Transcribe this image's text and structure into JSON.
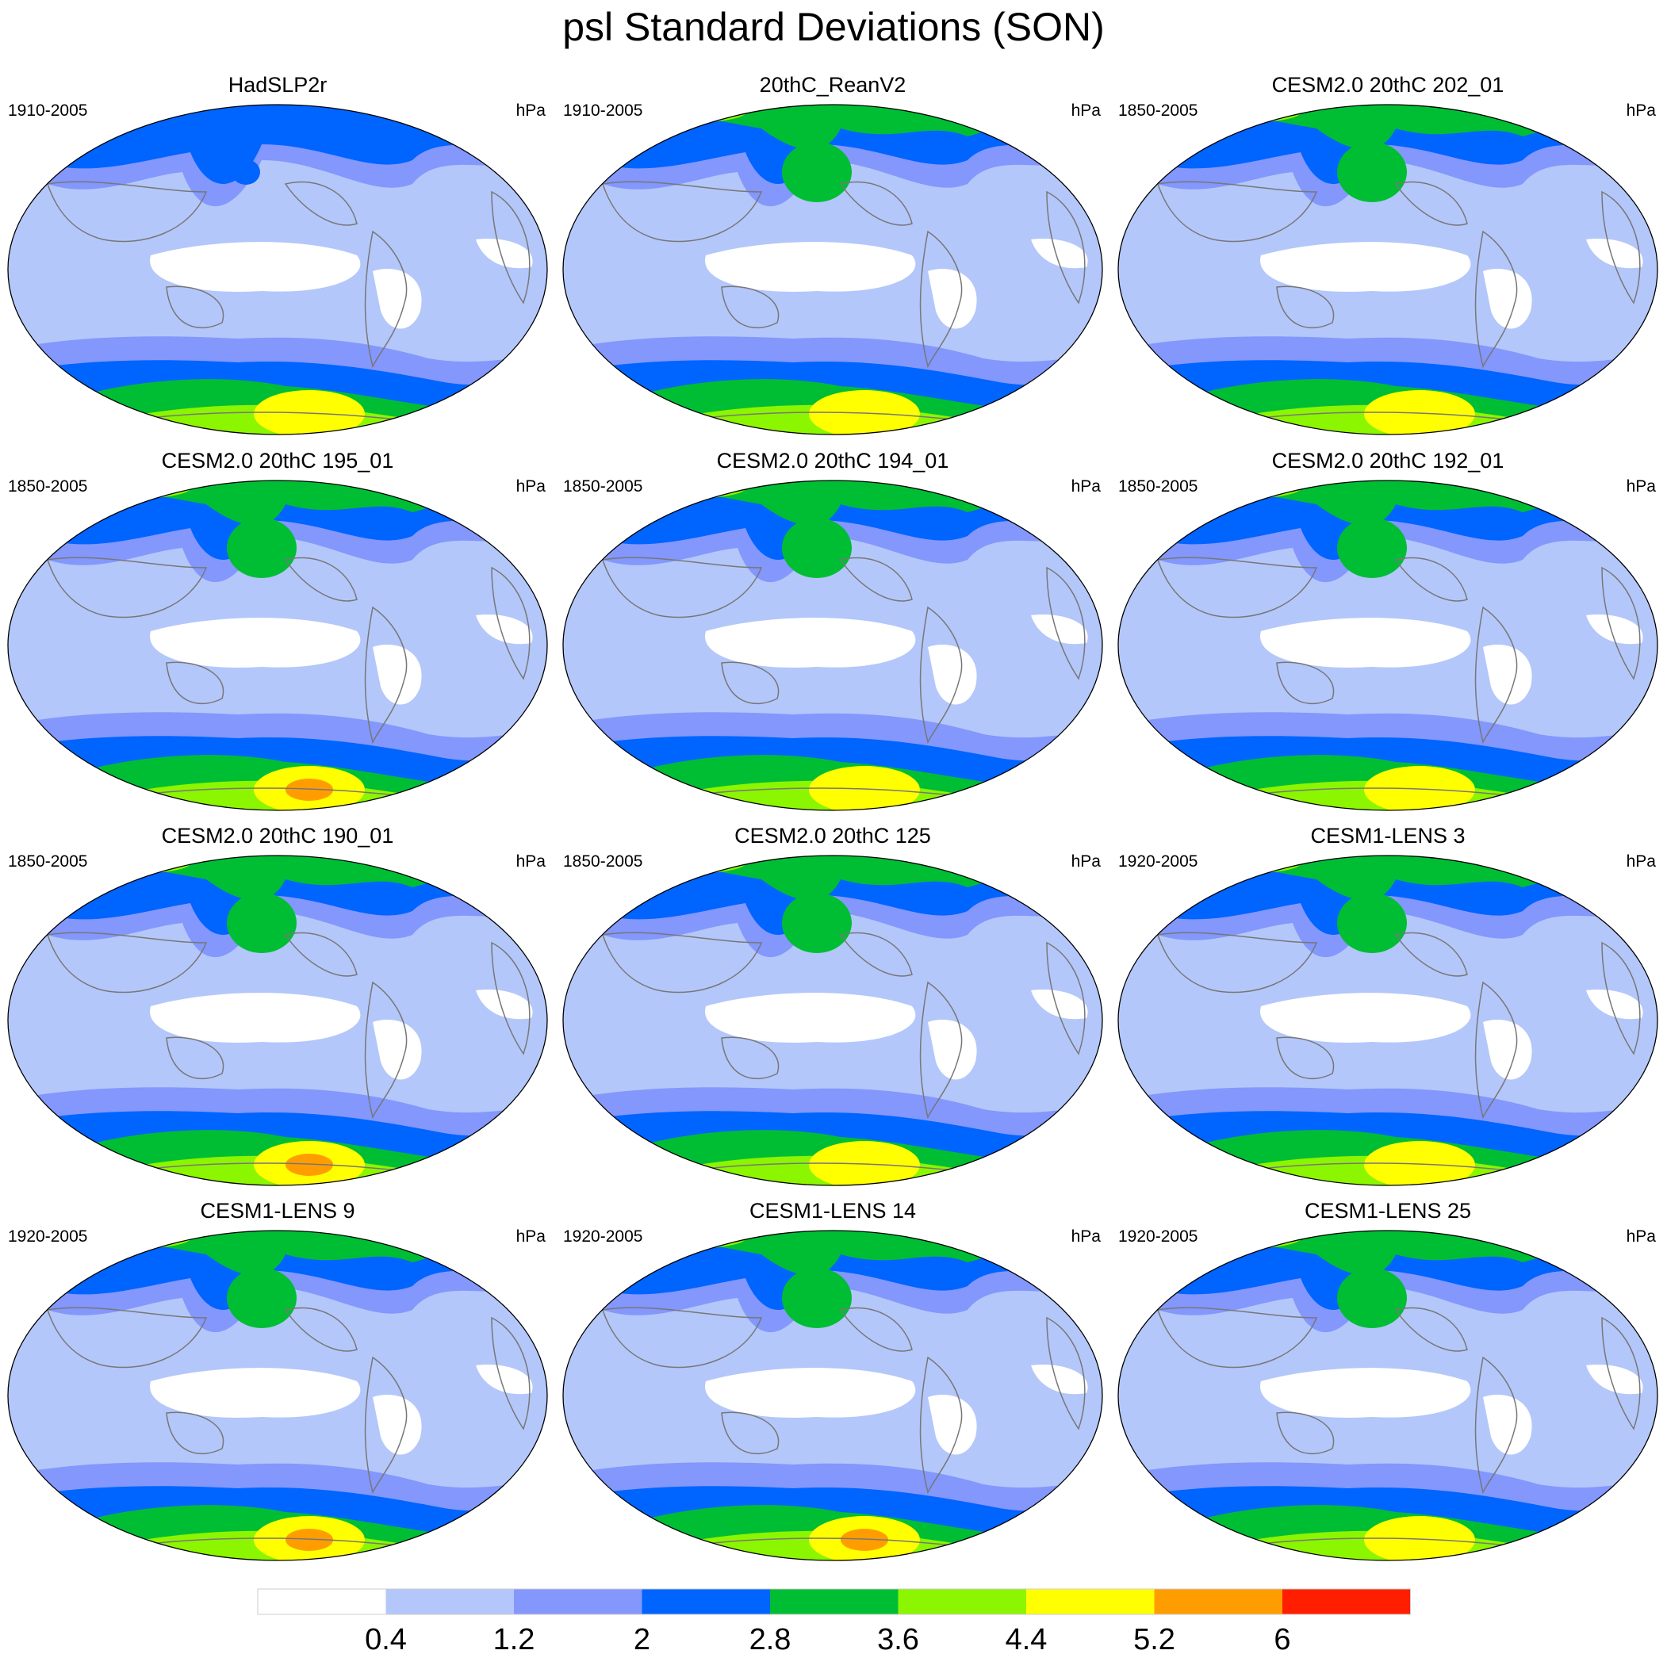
{
  "title": "psl Standard Deviations (SON)",
  "unit": "hPa",
  "legend": {
    "levels": [
      "0.4",
      "1.2",
      "2",
      "2.8",
      "3.6",
      "4.4",
      "5.2",
      "6"
    ],
    "colors": [
      "#ffffff",
      "#b4c7fa",
      "#8397fc",
      "#0064ff",
      "#00be34",
      "#8cf500",
      "#ffff00",
      "#ff9d00",
      "#ff1e00"
    ]
  },
  "panels": [
    {
      "title": "HadSLP2r",
      "period": "1910-2005",
      "unit": "hPa"
    },
    {
      "title": "20thC_ReanV2",
      "period": "1910-2005",
      "unit": "hPa"
    },
    {
      "title": "CESM2.0 20thC 202_01",
      "period": "1850-2005",
      "unit": "hPa"
    },
    {
      "title": "CESM2.0 20thC 195_01",
      "period": "1850-2005",
      "unit": "hPa"
    },
    {
      "title": "CESM2.0 20thC 194_01",
      "period": "1850-2005",
      "unit": "hPa"
    },
    {
      "title": "CESM2.0 20thC 192_01",
      "period": "1850-2005",
      "unit": "hPa"
    },
    {
      "title": "CESM2.0 20thC 190_01",
      "period": "1850-2005",
      "unit": "hPa"
    },
    {
      "title": "CESM2.0 20thC 125",
      "period": "1850-2005",
      "unit": "hPa"
    },
    {
      "title": "CESM1-LENS 3",
      "period": "1920-2005",
      "unit": "hPa"
    },
    {
      "title": "CESM1-LENS 9",
      "period": "1920-2005",
      "unit": "hPa"
    },
    {
      "title": "CESM1-LENS 14",
      "period": "1920-2005",
      "unit": "hPa"
    },
    {
      "title": "CESM1-LENS 25",
      "period": "1920-2005",
      "unit": "hPa"
    }
  ]
}
